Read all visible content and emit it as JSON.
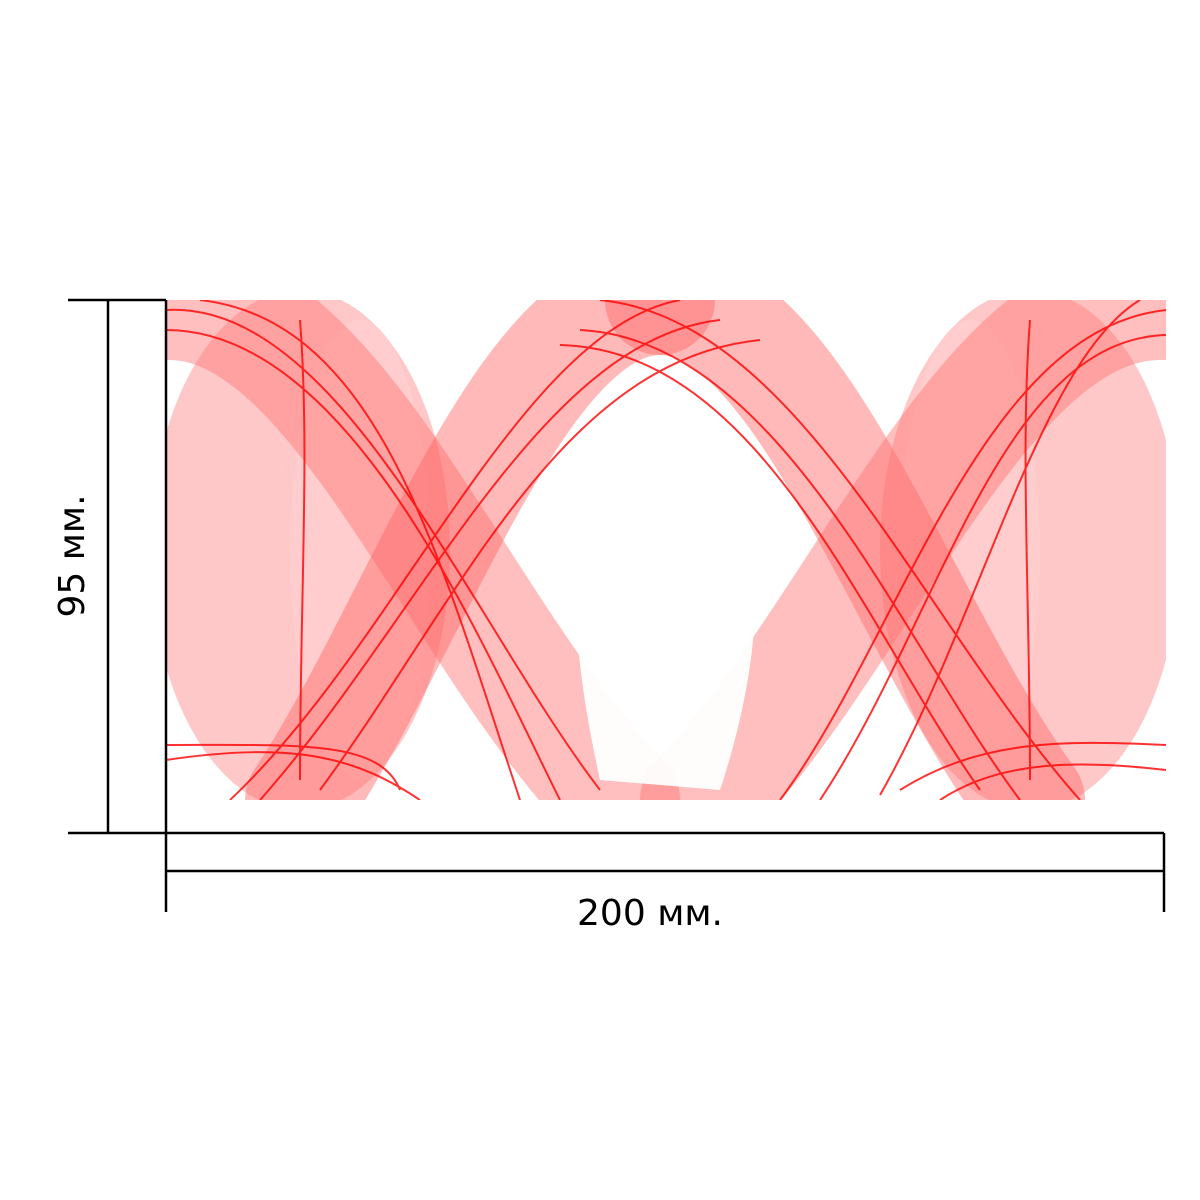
{
  "dimensions": {
    "width_label": "200 мм.",
    "height_label": "95 мм."
  },
  "artwork": {
    "description_colors": {
      "primary": "#ff0000",
      "light": "#ffc4c4",
      "background": "#ffffff"
    }
  },
  "line_color": "#000000"
}
